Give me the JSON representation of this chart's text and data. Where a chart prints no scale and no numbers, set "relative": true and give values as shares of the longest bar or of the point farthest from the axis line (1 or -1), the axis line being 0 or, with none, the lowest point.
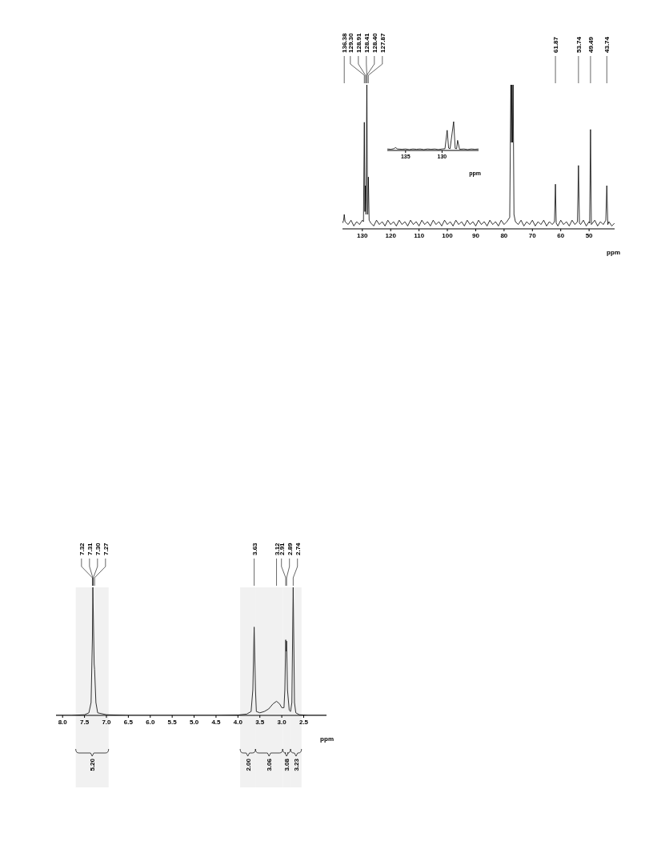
{
  "chart_data": [
    {
      "type": "line",
      "relative": true,
      "color": "#000000",
      "marker": "none",
      "xlabel": "ppm",
      "xlim": [
        137,
        41
      ],
      "xticks": [
        130,
        120,
        110,
        100,
        90,
        80,
        70,
        60,
        50
      ],
      "x": [
        137,
        136.6,
        136.38,
        136.1,
        135,
        134,
        133,
        132,
        131,
        130,
        129.6,
        129.3,
        129.1,
        128.91,
        128.7,
        128.41,
        128.2,
        128.1,
        127.87,
        127.6,
        127,
        126,
        125,
        124,
        123,
        122,
        121,
        120,
        119,
        118,
        117,
        116,
        115,
        114,
        113,
        112,
        111,
        110,
        109,
        108,
        107,
        106,
        105,
        104,
        103,
        102,
        101,
        100,
        99,
        98,
        97,
        96,
        95,
        94,
        93,
        92,
        91,
        90,
        89,
        88,
        87,
        86,
        85,
        84,
        83,
        82,
        81,
        80,
        79,
        78,
        77.6,
        77.4,
        77.2,
        77,
        76.8,
        76.5,
        76,
        75,
        74,
        73,
        72,
        71,
        70,
        69,
        68,
        67,
        66,
        65,
        64,
        63,
        62.2,
        61.87,
        61.6,
        61,
        60,
        59,
        58,
        57,
        56,
        55,
        54.1,
        53.74,
        53.4,
        53,
        52,
        51,
        50,
        49.8,
        49.49,
        49.2,
        48,
        47,
        46,
        45,
        44.1,
        43.74,
        43.4,
        43,
        42,
        41
      ],
      "values": [
        0.04,
        0.06,
        0.1,
        0.05,
        0.03,
        0.06,
        0.02,
        0.05,
        0.03,
        0.06,
        0.05,
        0.74,
        0.12,
        0.3,
        0.1,
        1,
        0.2,
        0.1,
        0.36,
        0.06,
        0.04,
        0.02,
        0.06,
        0.03,
        0.05,
        0.02,
        0.06,
        0.03,
        0.05,
        0.02,
        0.06,
        0.03,
        0.05,
        0.02,
        0.06,
        0.03,
        0.05,
        0.02,
        0.06,
        0.03,
        0.05,
        0.02,
        0.06,
        0.03,
        0.05,
        0.02,
        0.06,
        0.03,
        0.05,
        0.02,
        0.06,
        0.03,
        0.05,
        0.02,
        0.06,
        0.03,
        0.05,
        0.02,
        0.06,
        0.03,
        0.05,
        0.02,
        0.06,
        0.03,
        0.05,
        0.02,
        0.06,
        0.03,
        0.05,
        0.08,
        1,
        0.6,
        1,
        0.6,
        1,
        0.1,
        0.05,
        0.03,
        0.06,
        0.02,
        0.05,
        0.03,
        0.06,
        0.02,
        0.05,
        0.03,
        0.06,
        0.02,
        0.05,
        0.03,
        0.05,
        0.31,
        0.04,
        0.02,
        0.06,
        0.03,
        0.05,
        0.02,
        0.06,
        0.03,
        0.05,
        0.44,
        0.04,
        0.03,
        0.06,
        0.02,
        0.05,
        0.04,
        0.69,
        0.03,
        0.06,
        0.02,
        0.05,
        0.03,
        0.06,
        0.3,
        0.03,
        0.05,
        0.02,
        0.04
      ],
      "annotations": [
        {
          "text": "136.38",
          "x": 136.38
        },
        {
          "text": "129.30",
          "x": 129.3
        },
        {
          "text": "128.91",
          "x": 128.91
        },
        {
          "text": "128.41",
          "x": 128.41
        },
        {
          "text": "128.40",
          "x": 128.41
        },
        {
          "text": "127.87",
          "x": 127.87
        },
        {
          "text": "61.87",
          "x": 61.87
        },
        {
          "text": "53.74",
          "x": 53.74
        },
        {
          "text": "49.49",
          "x": 49.49
        },
        {
          "text": "43.74",
          "x": 43.74
        }
      ]
    },
    {
      "type": "line",
      "relative": true,
      "color": "#000000",
      "marker": "none",
      "xlabel": "ppm",
      "xlim": [
        137.5,
        125
      ],
      "xticks": [
        135,
        130
      ],
      "x": [
        137.5,
        137,
        136.6,
        136.38,
        136.1,
        135.5,
        135,
        134.5,
        134,
        133.5,
        133,
        132.5,
        132,
        131.5,
        131,
        130.5,
        130,
        129.6,
        129.3,
        129.1,
        128.9,
        128.41,
        128.2,
        128,
        127.87,
        127.6,
        127,
        126.5,
        126,
        125.5,
        125
      ],
      "values": [
        0.05,
        0.04,
        0.06,
        0.1,
        0.05,
        0.04,
        0.05,
        0.03,
        0.05,
        0.04,
        0.05,
        0.03,
        0.05,
        0.04,
        0.05,
        0.03,
        0.05,
        0.06,
        0.7,
        0.08,
        0.06,
        1,
        0.07,
        0.06,
        0.35,
        0.04,
        0.05,
        0.03,
        0.05,
        0.04,
        0.05
      ]
    },
    {
      "type": "line",
      "relative": true,
      "color": "#333333",
      "marker": "none",
      "xlabel": "ppm",
      "xlim": [
        8.15,
        1.98
      ],
      "xticks": [
        {
          "value": 8,
          "label": "8.0"
        },
        7.5,
        {
          "value": 7,
          "label": "7.0"
        },
        6.5,
        {
          "value": 6,
          "label": "6.0"
        },
        5.5,
        {
          "value": 5,
          "label": "5.0"
        },
        4.5,
        {
          "value": 4,
          "label": "4.0"
        },
        3.5,
        {
          "value": 3,
          "label": "3.0"
        },
        2.5
      ],
      "bands": [
        {
          "axis": "x",
          "from": 7.7,
          "to": 6.95,
          "label": "5.20"
        },
        {
          "axis": "x",
          "from": 3.95,
          "to": 3.6,
          "label": "2.00"
        },
        {
          "axis": "x",
          "from": 3.6,
          "to": 2.98,
          "label": "3.06"
        },
        {
          "axis": "x",
          "from": 2.98,
          "to": 2.8,
          "label": "3.08"
        },
        {
          "axis": "x",
          "from": 2.8,
          "to": 2.55,
          "label": "3.23"
        }
      ],
      "x": [
        8.15,
        7.8,
        7.5,
        7.4,
        7.35,
        7.32,
        7.31,
        7.3,
        7.28,
        7.27,
        7.24,
        7.2,
        7.0,
        6.5,
        6,
        5.5,
        5,
        4.5,
        4,
        3.8,
        3.7,
        3.66,
        3.63,
        3.6,
        3.58,
        3.5,
        3.4,
        3.3,
        3.2,
        3.12,
        3.05,
        3.0,
        2.95,
        2.93,
        2.91,
        2.9,
        2.89,
        2.87,
        2.83,
        2.8,
        2.77,
        2.74,
        2.71,
        2.68,
        2.6,
        2.4,
        2.2,
        1.98
      ],
      "values": [
        0,
        0,
        0.005,
        0.02,
        0.1,
        0.6,
        1,
        0.8,
        0.4,
        0.36,
        0.1,
        0.02,
        0.005,
        0,
        0,
        0,
        0,
        0,
        0.003,
        0.01,
        0.03,
        0.2,
        0.69,
        0.2,
        0.03,
        0.02,
        0.03,
        0.05,
        0.09,
        0.11,
        0.09,
        0.06,
        0.06,
        0.2,
        0.59,
        0.5,
        0.58,
        0.2,
        0.04,
        0.03,
        0.1,
        1,
        0.1,
        0.02,
        0.005,
        0,
        0,
        0
      ],
      "annotations": [
        {
          "text": "7.32",
          "x": 7.32
        },
        {
          "text": "7.31",
          "x": 7.31
        },
        {
          "text": "7.30",
          "x": 7.3
        },
        {
          "text": "7.27",
          "x": 7.27
        },
        {
          "text": "3.63",
          "x": 3.63
        },
        {
          "text": "3.12",
          "x": 3.12
        },
        {
          "text": "2.91",
          "x": 2.91
        },
        {
          "text": "2.89",
          "x": 2.89
        },
        {
          "text": "2.74",
          "x": 2.74
        }
      ]
    }
  ]
}
